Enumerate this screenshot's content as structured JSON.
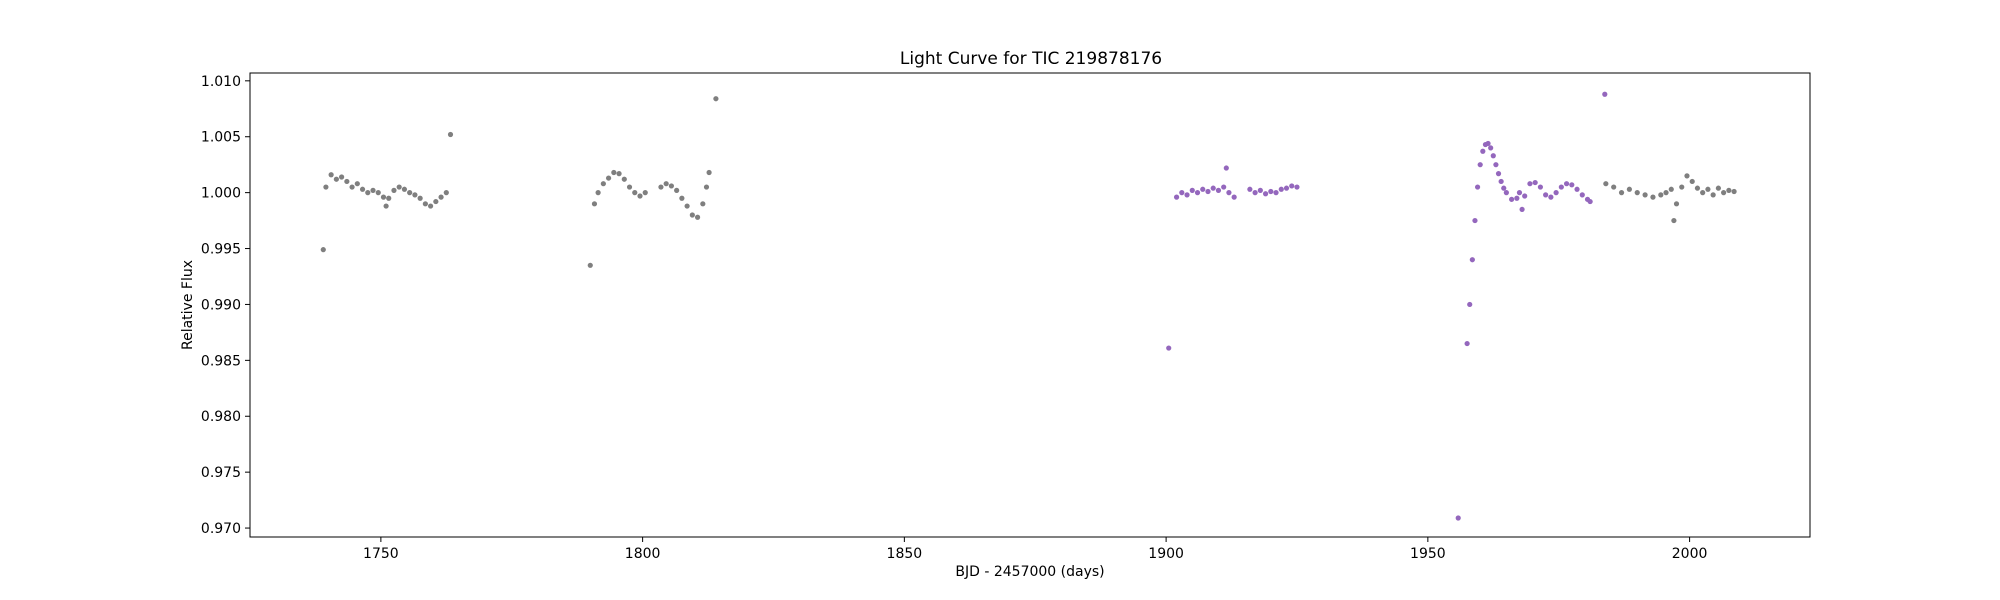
{
  "chart_data": {
    "type": "scatter",
    "title": "Light Curve for TIC 219878176",
    "xlabel": "BJD - 2457000 (days)",
    "ylabel": "Relative Flux",
    "xlim": [
      1725,
      2023
    ],
    "ylim": [
      0.9692,
      1.0107
    ],
    "xticks": [
      1750,
      1800,
      1850,
      1900,
      1950,
      2000
    ],
    "yticks": [
      0.97,
      0.975,
      0.98,
      0.985,
      0.99,
      0.995,
      1.0,
      1.005,
      1.01
    ],
    "grid": false,
    "series": [
      {
        "color": "#7f7f7f",
        "points": [
          [
            1739.5,
            1.0005
          ],
          [
            1740.5,
            1.0016
          ],
          [
            1741.5,
            1.0012
          ],
          [
            1742.5,
            1.0014
          ],
          [
            1743.5,
            1.001
          ],
          [
            1744.5,
            1.0005
          ],
          [
            1745.5,
            1.0008
          ],
          [
            1746.5,
            1.0003
          ],
          [
            1747.5,
            1.0
          ],
          [
            1748.5,
            1.0002
          ],
          [
            1749.5,
            1.0
          ],
          [
            1750.5,
            0.9996
          ],
          [
            1751.0,
            0.9988
          ],
          [
            1751.5,
            0.9995
          ],
          [
            1752.5,
            1.0002
          ],
          [
            1753.5,
            1.0005
          ],
          [
            1754.5,
            1.0003
          ],
          [
            1755.5,
            1.0
          ],
          [
            1756.5,
            0.9998
          ],
          [
            1757.5,
            0.9995
          ],
          [
            1758.5,
            0.999
          ],
          [
            1759.5,
            0.9988
          ],
          [
            1760.5,
            0.9992
          ],
          [
            1761.5,
            0.9996
          ],
          [
            1762.5,
            1.0
          ],
          [
            1739.0,
            0.9949
          ],
          [
            1763.3,
            1.0052
          ],
          [
            1790.8,
            0.999
          ],
          [
            1791.5,
            1.0
          ],
          [
            1792.5,
            1.0008
          ],
          [
            1793.5,
            1.0013
          ],
          [
            1794.5,
            1.0018
          ],
          [
            1795.5,
            1.0017
          ],
          [
            1796.5,
            1.0012
          ],
          [
            1797.5,
            1.0005
          ],
          [
            1798.5,
            1.0
          ],
          [
            1799.5,
            0.9997
          ],
          [
            1800.5,
            1.0
          ],
          [
            1803.5,
            1.0005
          ],
          [
            1804.5,
            1.0008
          ],
          [
            1805.5,
            1.0006
          ],
          [
            1806.5,
            1.0002
          ],
          [
            1807.5,
            0.9995
          ],
          [
            1808.5,
            0.9988
          ],
          [
            1809.5,
            0.998
          ],
          [
            1810.5,
            0.9978
          ],
          [
            1811.5,
            0.999
          ],
          [
            1812.2,
            1.0005
          ],
          [
            1812.7,
            1.0018
          ],
          [
            1790.0,
            0.9935
          ],
          [
            1814.0,
            1.0084
          ],
          [
            1984.0,
            1.0008
          ],
          [
            1985.5,
            1.0005
          ],
          [
            1987.0,
            1.0
          ],
          [
            1988.5,
            1.0003
          ],
          [
            1990.0,
            1.0
          ],
          [
            1991.5,
            0.9998
          ],
          [
            1993.0,
            0.9996
          ],
          [
            1994.5,
            0.9998
          ],
          [
            1995.5,
            1.0
          ],
          [
            1996.5,
            1.0003
          ],
          [
            1997.0,
            0.9975
          ],
          [
            1997.5,
            0.999
          ],
          [
            1998.5,
            1.0005
          ],
          [
            1999.5,
            1.0015
          ],
          [
            2000.5,
            1.001
          ],
          [
            2001.5,
            1.0004
          ],
          [
            2002.5,
            1.0
          ],
          [
            2003.5,
            1.0003
          ],
          [
            2004.5,
            0.9998
          ],
          [
            2005.5,
            1.0004
          ],
          [
            2006.5,
            1.0
          ],
          [
            2007.5,
            1.0002
          ],
          [
            2008.5,
            1.0001
          ]
        ]
      },
      {
        "color": "#9467bd",
        "points": [
          [
            1902.0,
            0.9996
          ],
          [
            1903.0,
            1.0
          ],
          [
            1904.0,
            0.9998
          ],
          [
            1905.0,
            1.0002
          ],
          [
            1906.0,
            1.0
          ],
          [
            1907.0,
            1.0003
          ],
          [
            1908.0,
            1.0001
          ],
          [
            1909.0,
            1.0004
          ],
          [
            1910.0,
            1.0002
          ],
          [
            1911.0,
            1.0005
          ],
          [
            1912.0,
            1.0
          ],
          [
            1913.0,
            0.9996
          ],
          [
            1916.0,
            1.0003
          ],
          [
            1917.0,
            1.0
          ],
          [
            1918.0,
            1.0002
          ],
          [
            1919.0,
            0.9999
          ],
          [
            1920.0,
            1.0001
          ],
          [
            1921.0,
            1.0
          ],
          [
            1922.0,
            1.0003
          ],
          [
            1923.0,
            1.0004
          ],
          [
            1924.0,
            1.0006
          ],
          [
            1925.0,
            1.0005
          ],
          [
            1900.5,
            0.9861
          ],
          [
            1911.5,
            1.0022
          ],
          [
            1957.5,
            0.9865
          ],
          [
            1958.0,
            0.99
          ],
          [
            1958.5,
            0.994
          ],
          [
            1959.0,
            0.9975
          ],
          [
            1959.5,
            1.0005
          ],
          [
            1960.0,
            1.0025
          ],
          [
            1960.5,
            1.0037
          ],
          [
            1961.0,
            1.0043
          ],
          [
            1961.5,
            1.0044
          ],
          [
            1962.0,
            1.004
          ],
          [
            1962.5,
            1.0033
          ],
          [
            1963.0,
            1.0025
          ],
          [
            1963.5,
            1.0017
          ],
          [
            1964.0,
            1.001
          ],
          [
            1964.5,
            1.0004
          ],
          [
            1965.0,
            1.0
          ],
          [
            1966.0,
            0.9994
          ],
          [
            1967.0,
            0.9995
          ],
          [
            1967.5,
            1.0
          ],
          [
            1968.0,
            0.9985
          ],
          [
            1968.5,
            0.9997
          ],
          [
            1969.5,
            1.0008
          ],
          [
            1970.5,
            1.0009
          ],
          [
            1971.5,
            1.0005
          ],
          [
            1972.5,
            0.9998
          ],
          [
            1973.5,
            0.9996
          ],
          [
            1974.5,
            1.0
          ],
          [
            1975.5,
            1.0005
          ],
          [
            1976.5,
            1.0008
          ],
          [
            1977.5,
            1.0007
          ],
          [
            1978.5,
            1.0003
          ],
          [
            1979.5,
            0.9998
          ],
          [
            1980.5,
            0.9994
          ],
          [
            1981.0,
            0.9992
          ],
          [
            1955.8,
            0.9709
          ],
          [
            1983.8,
            1.0088
          ]
        ]
      }
    ]
  }
}
